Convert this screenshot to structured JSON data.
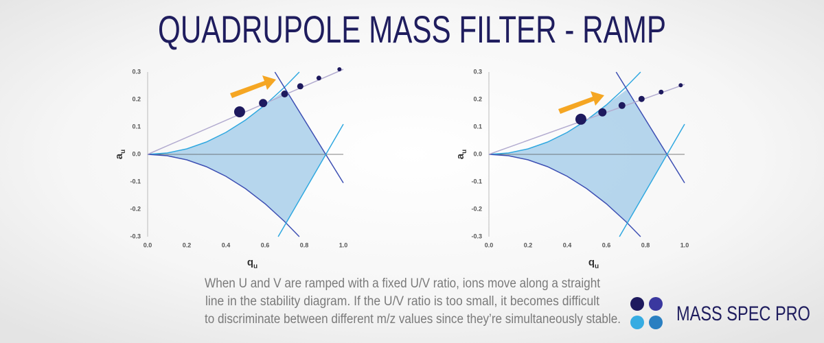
{
  "title": "QUADRUPOLE MASS FILTER - RAMP",
  "caption": [
    "When U and V are ramped with a fixed U/V ratio, ions move along a straight",
    "line in the stability diagram.  If the U/V ratio is too small, it becomes difficult",
    "to discriminate between different m/z values since they’re simultaneously stable."
  ],
  "logo": "MASS SPEC PRO",
  "chart_data": [
    {
      "type": "scatter",
      "xlabel": "q",
      "xlabel_sub": "u",
      "ylabel": "a",
      "ylabel_sub": "u",
      "xlim": [
        0,
        1
      ],
      "ylim": [
        -0.3,
        0.3
      ],
      "xticks": [
        {
          "value": 0,
          "label": "0.0"
        },
        0.2,
        0.4,
        0.6,
        0.8,
        {
          "value": 1,
          "label": "1.0"
        }
      ],
      "yticks": [
        -0.3,
        -0.2,
        -0.1,
        {
          "value": 0,
          "label": "0.0"
        },
        0.1,
        0.2,
        0.3
      ],
      "series": [
        {
          "type": "area",
          "color": "#a9cfea",
          "x": [
            0,
            0.1,
            0.2,
            0.3,
            0.4,
            0.5,
            0.6,
            0.706,
            0.908,
            0.706,
            0.6,
            0.5,
            0.4,
            0.3,
            0.2,
            0.1
          ],
          "values": [
            0,
            0.005,
            0.02,
            0.045,
            0.08,
            0.125,
            0.18,
            0.237,
            0,
            -0.249,
            -0.18,
            -0.125,
            -0.08,
            -0.045,
            -0.02,
            -0.005
          ]
        },
        {
          "type": "line",
          "color": "#2fa8e0",
          "x": [
            0,
            0.1,
            0.2,
            0.3,
            0.4,
            0.5,
            0.6,
            0.7,
            0.775
          ],
          "values": [
            0,
            0.005,
            0.02,
            0.045,
            0.08,
            0.125,
            0.18,
            0.245,
            0.3
          ]
        },
        {
          "type": "line",
          "color": "#3d4fb3",
          "x": [
            0,
            0.1,
            0.2,
            0.3,
            0.4,
            0.5,
            0.6,
            0.7,
            0.775
          ],
          "values": [
            0,
            -0.005,
            -0.02,
            -0.045,
            -0.08,
            -0.125,
            -0.18,
            -0.245,
            -0.3
          ]
        },
        {
          "type": "line",
          "color": "#3d4fb3",
          "x": [
            0.65,
            1
          ],
          "values": [
            0.3,
            -0.104
          ]
        },
        {
          "type": "line",
          "color": "#2fa8e0",
          "x": [
            0.667,
            1
          ],
          "values": [
            -0.3,
            0.11
          ]
        },
        {
          "type": "line",
          "color": "#b3acd0",
          "x": [
            0,
            1
          ],
          "values": [
            0,
            0.31
          ]
        },
        {
          "type": "scatter",
          "color": "#1e1a5e",
          "x": [
            0.47,
            0.59,
            0.7,
            0.78,
            0.875,
            0.98
          ],
          "values": [
            0.155,
            0.187,
            0.22,
            0.248,
            0.278,
            0.31
          ],
          "sizes": [
            8,
            6,
            5,
            4.5,
            3.5,
            3
          ]
        }
      ]
    },
    {
      "type": "scatter",
      "xlabel": "q",
      "xlabel_sub": "u",
      "ylabel": "a",
      "ylabel_sub": "u",
      "xlim": [
        0,
        1
      ],
      "ylim": [
        -0.3,
        0.3
      ],
      "xticks": [
        {
          "value": 0,
          "label": "0.0"
        },
        0.2,
        0.4,
        0.6,
        0.8,
        {
          "value": 1,
          "label": "1.0"
        }
      ],
      "yticks": [
        -0.3,
        -0.2,
        -0.1,
        {
          "value": 0,
          "label": "0.0"
        },
        0.1,
        0.2,
        0.3
      ],
      "series": [
        {
          "type": "area",
          "color": "#a9cfea",
          "x": [
            0,
            0.1,
            0.2,
            0.3,
            0.4,
            0.5,
            0.6,
            0.706,
            0.908,
            0.706,
            0.6,
            0.5,
            0.4,
            0.3,
            0.2,
            0.1
          ],
          "values": [
            0,
            0.005,
            0.02,
            0.045,
            0.08,
            0.125,
            0.18,
            0.237,
            0,
            -0.249,
            -0.18,
            -0.125,
            -0.08,
            -0.045,
            -0.02,
            -0.005
          ]
        },
        {
          "type": "line",
          "color": "#2fa8e0",
          "x": [
            0,
            0.1,
            0.2,
            0.3,
            0.4,
            0.5,
            0.6,
            0.7,
            0.775
          ],
          "values": [
            0,
            0.005,
            0.02,
            0.045,
            0.08,
            0.125,
            0.18,
            0.245,
            0.3
          ]
        },
        {
          "type": "line",
          "color": "#3d4fb3",
          "x": [
            0,
            0.1,
            0.2,
            0.3,
            0.4,
            0.5,
            0.6,
            0.7,
            0.775
          ],
          "values": [
            0,
            -0.005,
            -0.02,
            -0.045,
            -0.08,
            -0.125,
            -0.18,
            -0.245,
            -0.3
          ]
        },
        {
          "type": "line",
          "color": "#3d4fb3",
          "x": [
            0.65,
            1
          ],
          "values": [
            0.3,
            -0.104
          ]
        },
        {
          "type": "line",
          "color": "#2fa8e0",
          "x": [
            0.667,
            1
          ],
          "values": [
            -0.3,
            0.11
          ]
        },
        {
          "type": "line",
          "color": "#b3acd0",
          "x": [
            0,
            1
          ],
          "values": [
            0,
            0.255
          ]
        },
        {
          "type": "scatter",
          "color": "#1e1a5e",
          "x": [
            0.47,
            0.58,
            0.68,
            0.78,
            0.88,
            0.98
          ],
          "values": [
            0.128,
            0.153,
            0.178,
            0.202,
            0.227,
            0.252
          ],
          "sizes": [
            8,
            6,
            5,
            4.5,
            3.5,
            3
          ]
        }
      ]
    }
  ]
}
